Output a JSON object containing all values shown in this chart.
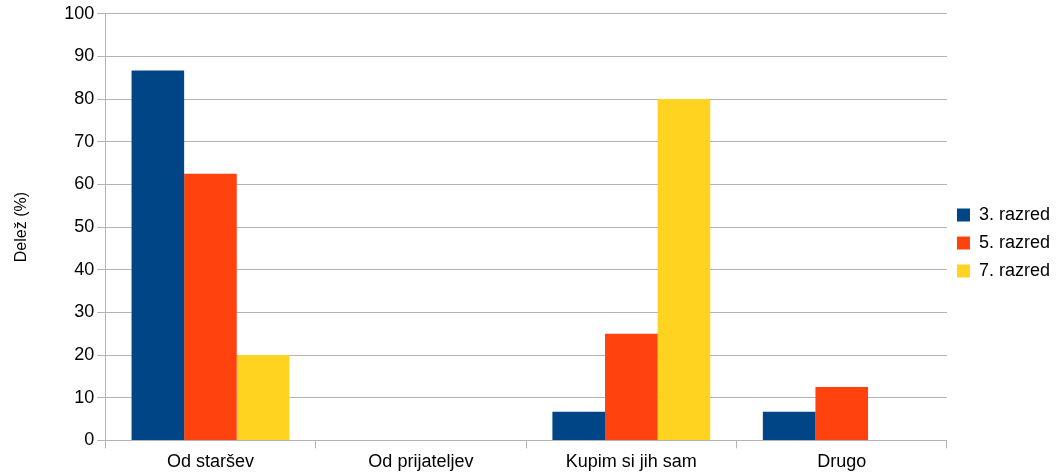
{
  "chart_data": {
    "type": "bar",
    "ylabel": "Delež (%)",
    "categories": [
      "Od staršev",
      "Od prijateljev",
      "Kupim si jih sam",
      "Drugo"
    ],
    "series": [
      {
        "name": "3. razred",
        "color": "#004586",
        "values": [
          86.7,
          0,
          6.7,
          6.7
        ]
      },
      {
        "name": "5. razred",
        "color": "#ff420e",
        "values": [
          62.5,
          0,
          25,
          12.5
        ]
      },
      {
        "name": "7. razred",
        "color": "#ffd320",
        "values": [
          20,
          0,
          80,
          0
        ]
      }
    ],
    "ylim": [
      0,
      100
    ],
    "yticks": [
      0,
      10,
      20,
      30,
      40,
      50,
      60,
      70,
      80,
      90,
      100
    ],
    "grid": "y",
    "legend": "right"
  }
}
